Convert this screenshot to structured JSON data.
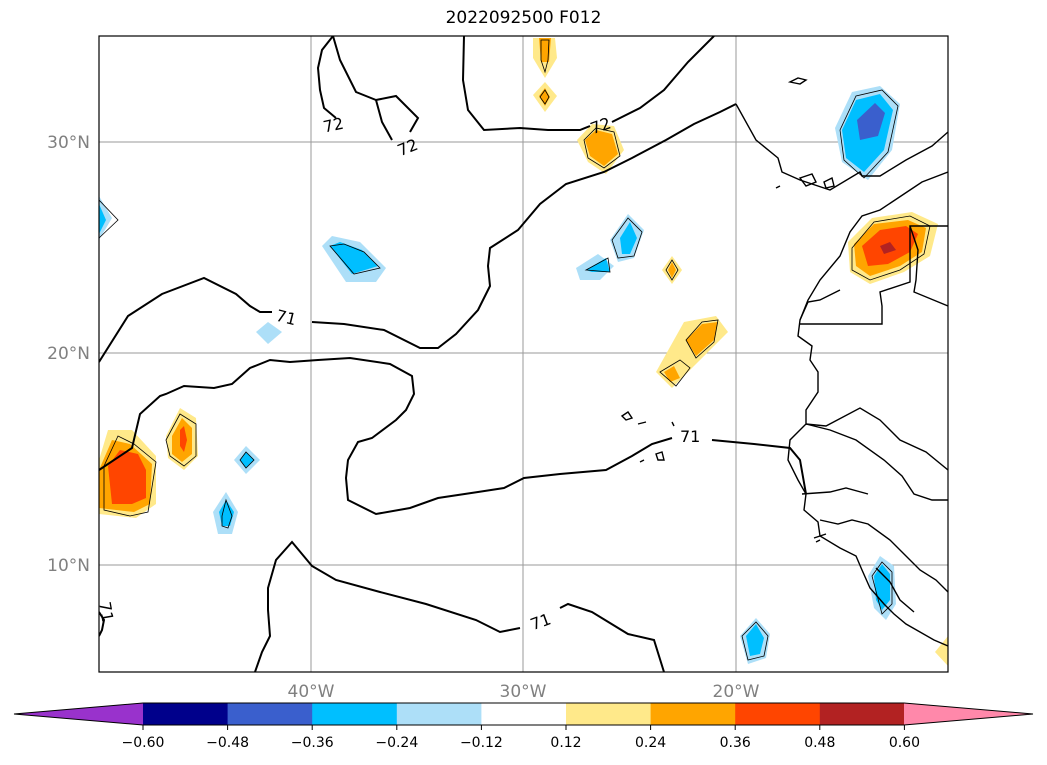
{
  "title": "2022092500 F012",
  "map": {
    "lat_labels": [
      "30°N",
      "20°N",
      "10°N"
    ],
    "lon_labels": [
      "40°W",
      "30°W",
      "20°W"
    ],
    "contour_labels": [
      "72",
      "72",
      "72",
      "71",
      "71",
      "71",
      "71"
    ]
  },
  "colorbar": {
    "ticks": [
      "−0.60",
      "−0.48",
      "−0.36",
      "−0.24",
      "−0.12",
      "0.12",
      "0.24",
      "0.36",
      "0.48",
      "0.60"
    ],
    "colors": {
      "under": "#9932CC",
      "bins": [
        "#00008B",
        "#3A5FCD",
        "#00BFFF",
        "#ADDFF8",
        "#FFFFFF",
        "#FFE98A",
        "#FFA500",
        "#FF4500",
        "#B22222"
      ],
      "over": "#FF88AA"
    }
  }
}
